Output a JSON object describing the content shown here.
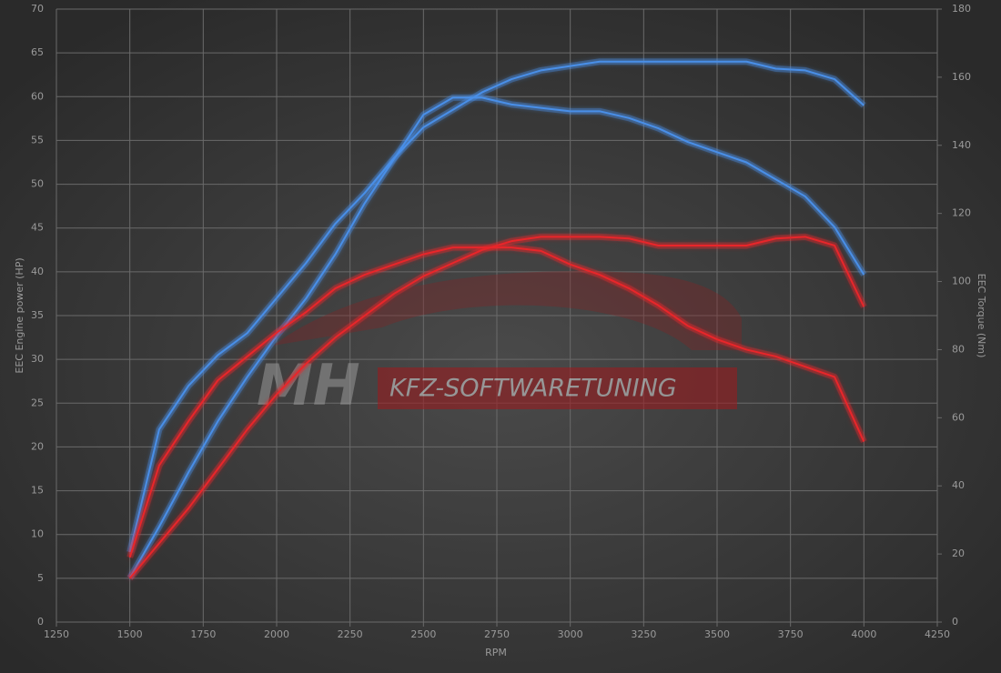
{
  "chart_data": {
    "type": "line",
    "x_label": "RPM",
    "y_label": "EEC Engine power (HP)",
    "y2_label": "EEC Torque (Nm)",
    "watermark": [
      "MH",
      "KFZ-SOFTWARETUNING"
    ],
    "x": [
      1500,
      1600,
      1700,
      1800,
      1900,
      2000,
      2100,
      2200,
      2300,
      2400,
      2500,
      2600,
      2700,
      2800,
      2900,
      3000,
      3100,
      3200,
      3300,
      3400,
      3500,
      3600,
      3700,
      3800,
      3900,
      4000
    ],
    "xlim": [
      1250,
      4250
    ],
    "xticks": [
      1250,
      1500,
      1750,
      2000,
      2250,
      2500,
      2750,
      3000,
      3250,
      3500,
      3750,
      4000,
      4250
    ],
    "ylim": [
      0,
      70
    ],
    "yticks": [
      0,
      5,
      10,
      15,
      20,
      25,
      30,
      35,
      40,
      45,
      50,
      55,
      60,
      65,
      70
    ],
    "y2lim": [
      0,
      180
    ],
    "y2ticks": [
      0,
      20,
      40,
      60,
      80,
      100,
      120,
      140,
      160,
      180
    ],
    "grid": true,
    "series": [
      {
        "color": "#4a8fe8",
        "axis": "y",
        "values": [
          8,
          22,
          27,
          30.5,
          33,
          37,
          41,
          45.5,
          49,
          53,
          56.5,
          58.5,
          60.5,
          62,
          63,
          63.5,
          64,
          64,
          64,
          64,
          64,
          64,
          63.2,
          63,
          62,
          59
        ]
      },
      {
        "color": "#4a8fe8",
        "axis": "y2",
        "values": [
          13,
          28,
          44,
          59,
          72,
          84,
          95,
          108,
          123,
          136,
          149,
          154,
          154,
          152,
          151,
          150,
          150,
          148,
          145,
          141,
          138,
          135,
          130,
          125,
          116,
          102
        ]
      },
      {
        "color": "#e8262a",
        "axis": "y",
        "values": [
          5,
          9,
          13,
          17.5,
          22,
          26,
          29.5,
          32.5,
          35,
          37.5,
          39.5,
          41,
          42.5,
          43.5,
          44,
          44,
          44,
          43.8,
          43,
          43,
          43,
          43,
          43.8,
          44,
          43,
          36
        ]
      },
      {
        "color": "#e8262a",
        "axis": "y2",
        "values": [
          19,
          46,
          59,
          71,
          78,
          85,
          91,
          98,
          102,
          105,
          108,
          110,
          110,
          110,
          109,
          105,
          102,
          98,
          93,
          87,
          83,
          80,
          78,
          75,
          72,
          53
        ]
      }
    ]
  }
}
